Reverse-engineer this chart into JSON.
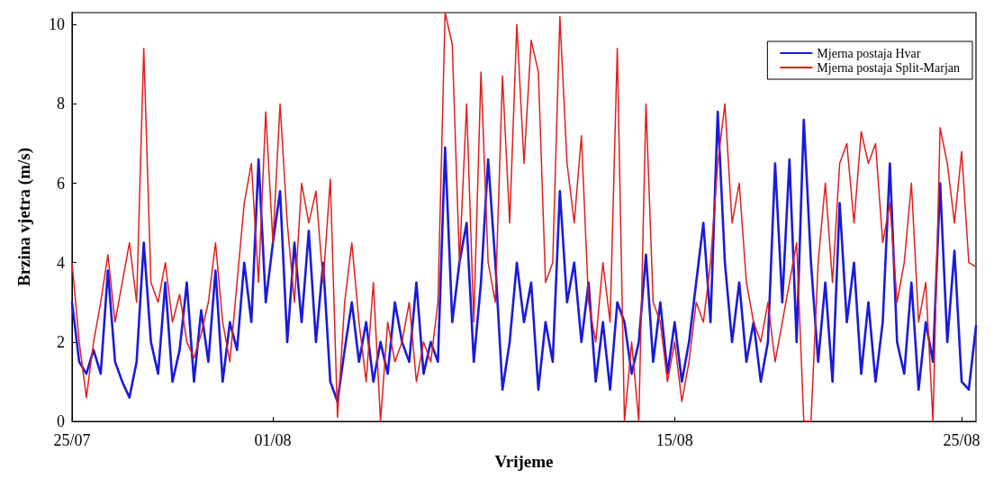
{
  "chart_data": {
    "type": "line",
    "xlabel": "Vrijeme",
    "ylabel": "Brzina vjetra (m/s)",
    "x": [
      "--07-25T00:00",
      "--07-25T06:00",
      "--07-25T12:00",
      "--07-25T18:00",
      "--07-26T00:00",
      "--07-26T06:00",
      "--07-26T12:00",
      "--07-26T18:00",
      "--07-27T00:00",
      "--07-27T06:00",
      "--07-27T12:00",
      "--07-27T18:00",
      "--07-28T00:00",
      "--07-28T06:00",
      "--07-28T12:00",
      "--07-28T18:00",
      "--07-29T00:00",
      "--07-29T06:00",
      "--07-29T12:00",
      "--07-29T18:00",
      "--07-30T00:00",
      "--07-30T06:00",
      "--07-30T12:00",
      "--07-30T18:00",
      "--07-31T00:00",
      "--07-31T06:00",
      "--07-31T12:00",
      "--07-31T18:00",
      "--08-01T00:00",
      "--08-01T06:00",
      "--08-01T12:00",
      "--08-01T18:00",
      "--08-02T00:00",
      "--08-02T06:00",
      "--08-02T12:00",
      "--08-02T18:00",
      "--08-03T00:00",
      "--08-03T06:00",
      "--08-03T12:00",
      "--08-03T18:00",
      "--08-04T00:00",
      "--08-04T06:00",
      "--08-04T12:00",
      "--08-04T18:00",
      "--08-05T00:00",
      "--08-05T06:00",
      "--08-05T12:00",
      "--08-05T18:00",
      "--08-06T00:00",
      "--08-06T06:00",
      "--08-06T12:00",
      "--08-06T18:00",
      "--08-07T00:00",
      "--08-07T06:00",
      "--08-07T12:00",
      "--08-07T18:00",
      "--08-08T00:00",
      "--08-08T06:00",
      "--08-08T12:00",
      "--08-08T18:00",
      "--08-09T00:00",
      "--08-09T06:00",
      "--08-09T12:00",
      "--08-09T18:00",
      "--08-10T00:00",
      "--08-10T06:00",
      "--08-10T12:00",
      "--08-10T18:00",
      "--08-11T00:00",
      "--08-11T06:00",
      "--08-11T12:00",
      "--08-11T18:00",
      "--08-12T00:00",
      "--08-12T06:00",
      "--08-12T12:00",
      "--08-12T18:00",
      "--08-13T00:00",
      "--08-13T06:00",
      "--08-13T12:00",
      "--08-13T18:00",
      "--08-14T00:00",
      "--08-14T06:00",
      "--08-14T12:00",
      "--08-14T18:00",
      "--08-15T00:00",
      "--08-15T06:00",
      "--08-15T12:00",
      "--08-15T18:00",
      "--08-16T00:00",
      "--08-16T06:00",
      "--08-16T12:00",
      "--08-16T18:00",
      "--08-17T00:00",
      "--08-17T06:00",
      "--08-17T12:00",
      "--08-17T18:00",
      "--08-18T00:00",
      "--08-18T06:00",
      "--08-18T12:00",
      "--08-18T18:00",
      "--08-19T00:00",
      "--08-19T06:00",
      "--08-19T12:00",
      "--08-19T18:00",
      "--08-20T00:00",
      "--08-20T06:00",
      "--08-20T12:00",
      "--08-20T18:00",
      "--08-21T00:00",
      "--08-21T06:00",
      "--08-21T12:00",
      "--08-21T18:00",
      "--08-22T00:00",
      "--08-22T06:00",
      "--08-22T12:00",
      "--08-22T18:00",
      "--08-23T00:00",
      "--08-23T06:00",
      "--08-23T12:00",
      "--08-23T18:00",
      "--08-24T00:00",
      "--08-24T06:00",
      "--08-24T12:00",
      "--08-24T18:00",
      "--08-25T00:00",
      "--08-25T06:00",
      "--08-25T12:00"
    ],
    "series": [
      {
        "name": "Mjerna postaja Hvar",
        "color": "#1a1adc",
        "values": [
          3.0,
          1.5,
          1.2,
          1.8,
          1.2,
          3.8,
          1.5,
          1.0,
          0.6,
          1.5,
          4.5,
          2.0,
          1.2,
          3.5,
          1.0,
          1.8,
          3.5,
          1.0,
          2.8,
          1.5,
          3.8,
          1.0,
          2.5,
          1.8,
          4.0,
          2.5,
          6.6,
          3.0,
          4.5,
          5.8,
          2.0,
          4.5,
          2.5,
          4.8,
          2.0,
          4.0,
          1.0,
          0.5,
          1.8,
          3.0,
          1.5,
          2.5,
          1.0,
          2.0,
          1.2,
          3.0,
          2.0,
          1.5,
          3.5,
          1.2,
          2.0,
          1.5,
          6.9,
          2.5,
          4.0,
          5.0,
          1.5,
          3.5,
          6.6,
          4.0,
          0.8,
          2.0,
          4.0,
          2.5,
          3.5,
          0.8,
          2.5,
          1.5,
          5.8,
          3.0,
          4.0,
          2.0,
          3.5,
          1.0,
          2.5,
          0.8,
          3.0,
          2.5,
          1.2,
          2.0,
          4.2,
          1.5,
          3.0,
          1.2,
          2.5,
          1.0,
          2.0,
          3.5,
          5.0,
          2.5,
          7.8,
          4.0,
          2.0,
          3.5,
          1.5,
          2.5,
          1.0,
          2.0,
          6.5,
          3.0,
          6.6,
          2.0,
          7.6,
          4.0,
          1.5,
          3.5,
          1.0,
          5.5,
          2.5,
          4.0,
          1.2,
          3.0,
          1.0,
          2.5,
          6.5,
          2.0,
          1.2,
          3.5,
          0.8,
          2.5,
          1.5,
          6.0,
          2.0,
          4.3,
          1.0,
          0.8,
          2.4
        ]
      },
      {
        "name": "Mjerna postaja Split-Marjan",
        "color": "#e01e1e",
        "values": [
          4.0,
          2.0,
          0.6,
          2.0,
          3.0,
          4.2,
          2.5,
          3.5,
          4.5,
          3.0,
          9.4,
          3.5,
          3.0,
          4.0,
          2.5,
          3.2,
          2.0,
          1.6,
          2.2,
          3.0,
          4.5,
          2.5,
          1.5,
          3.5,
          5.5,
          6.5,
          3.5,
          7.8,
          4.5,
          8.0,
          5.0,
          3.0,
          6.0,
          5.0,
          5.8,
          3.5,
          6.1,
          0.1,
          3.0,
          4.5,
          2.5,
          1.0,
          3.5,
          0.0,
          2.5,
          1.5,
          2.0,
          3.0,
          1.0,
          2.0,
          1.5,
          3.0,
          10.3,
          9.5,
          4.0,
          8.0,
          2.5,
          8.8,
          4.0,
          3.0,
          8.7,
          5.0,
          10.0,
          6.5,
          9.6,
          8.8,
          3.5,
          4.0,
          10.2,
          6.5,
          5.0,
          7.2,
          3.0,
          2.0,
          4.0,
          2.5,
          9.4,
          0.0,
          2.0,
          0.0,
          8.0,
          3.0,
          2.5,
          1.0,
          2.0,
          0.5,
          1.5,
          3.0,
          2.5,
          4.0,
          6.5,
          8.0,
          5.0,
          6.0,
          3.5,
          2.5,
          2.0,
          3.0,
          1.5,
          2.5,
          3.5,
          4.5,
          0.0,
          0.0,
          4.0,
          6.0,
          3.5,
          6.5,
          7.0,
          5.0,
          7.3,
          6.5,
          7.0,
          4.5,
          5.5,
          3.0,
          4.0,
          6.0,
          2.5,
          3.5,
          0.0,
          7.4,
          6.5,
          5.0,
          6.8,
          4.0,
          3.9
        ]
      }
    ],
    "xlim": [
      "--07-25",
      "--08-25T12:00"
    ],
    "xticks": [
      {
        "value": "--07-25",
        "label": "25/07"
      },
      {
        "value": "--08-01",
        "label": "01/08"
      },
      {
        "value": "--08-15",
        "label": "15/08"
      },
      {
        "value": "--08-25",
        "label": "25/08"
      }
    ],
    "ylim": [
      0,
      10.3
    ],
    "yticks": [
      0,
      2,
      4,
      6,
      8,
      10
    ],
    "grid": false,
    "legend": "top right",
    "marker": "none",
    "line_style": "solid"
  }
}
